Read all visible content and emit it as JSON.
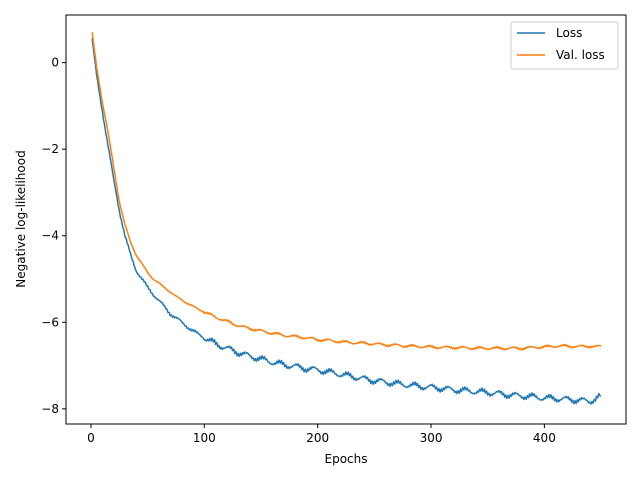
{
  "chart_data": {
    "type": "line",
    "title": "",
    "xlabel": "Epochs",
    "ylabel": "Negative log-likelihood",
    "xlim": [
      -22,
      472
    ],
    "ylim": [
      -8.35,
      1.1
    ],
    "xticks": [
      0,
      100,
      200,
      300,
      400
    ],
    "yticks": [
      0,
      -2,
      -4,
      -6,
      -8
    ],
    "grid": false,
    "legend_position": "top-right",
    "series": [
      {
        "name": "Loss",
        "color": "#1f77b4",
        "x": [
          1,
          5,
          10,
          15,
          20,
          25,
          30,
          35,
          40,
          45,
          50,
          55,
          60,
          65,
          70,
          75,
          80,
          85,
          90,
          95,
          100,
          110,
          120,
          130,
          140,
          150,
          160,
          170,
          180,
          190,
          200,
          210,
          220,
          230,
          240,
          250,
          260,
          270,
          280,
          290,
          300,
          310,
          320,
          330,
          340,
          350,
          360,
          370,
          380,
          390,
          400,
          410,
          420,
          430,
          440,
          445,
          450
        ],
        "y": [
          0.55,
          -0.3,
          -1.1,
          -1.9,
          -2.7,
          -3.4,
          -4.0,
          -4.45,
          -4.8,
          -5.0,
          -5.2,
          -5.35,
          -5.5,
          -5.65,
          -5.8,
          -5.9,
          -6.0,
          -6.1,
          -6.2,
          -6.28,
          -6.35,
          -6.5,
          -6.6,
          -6.7,
          -6.78,
          -6.85,
          -6.92,
          -6.98,
          -7.02,
          -7.07,
          -7.1,
          -7.15,
          -7.2,
          -7.25,
          -7.3,
          -7.35,
          -7.38,
          -7.42,
          -7.45,
          -7.48,
          -7.5,
          -7.53,
          -7.56,
          -7.58,
          -7.6,
          -7.62,
          -7.65,
          -7.68,
          -7.7,
          -7.72,
          -7.75,
          -7.76,
          -7.78,
          -7.8,
          -7.82,
          -7.78,
          -7.7
        ]
      },
      {
        "name": "Val. loss",
        "color": "#ff7f0e",
        "x": [
          1,
          5,
          10,
          15,
          20,
          25,
          30,
          35,
          40,
          45,
          50,
          55,
          60,
          65,
          70,
          75,
          80,
          85,
          90,
          95,
          100,
          110,
          120,
          130,
          140,
          150,
          160,
          170,
          180,
          190,
          200,
          210,
          220,
          230,
          240,
          250,
          260,
          270,
          280,
          290,
          300,
          310,
          320,
          330,
          340,
          350,
          360,
          370,
          380,
          390,
          400,
          410,
          420,
          430,
          440,
          445,
          450
        ],
        "y": [
          0.7,
          -0.1,
          -0.9,
          -1.6,
          -2.4,
          -3.2,
          -3.75,
          -4.15,
          -4.45,
          -4.65,
          -4.85,
          -5.0,
          -5.1,
          -5.2,
          -5.3,
          -5.4,
          -5.48,
          -5.56,
          -5.63,
          -5.7,
          -5.76,
          -5.88,
          -5.98,
          -6.08,
          -6.14,
          -6.2,
          -6.25,
          -6.3,
          -6.33,
          -6.36,
          -6.4,
          -6.42,
          -6.45,
          -6.47,
          -6.48,
          -6.5,
          -6.52,
          -6.53,
          -6.55,
          -6.56,
          -6.57,
          -6.58,
          -6.58,
          -6.59,
          -6.6,
          -6.6,
          -6.6,
          -6.6,
          -6.6,
          -6.58,
          -6.57,
          -6.55,
          -6.55,
          -6.56,
          -6.55,
          -6.57,
          -6.55
        ]
      }
    ]
  }
}
